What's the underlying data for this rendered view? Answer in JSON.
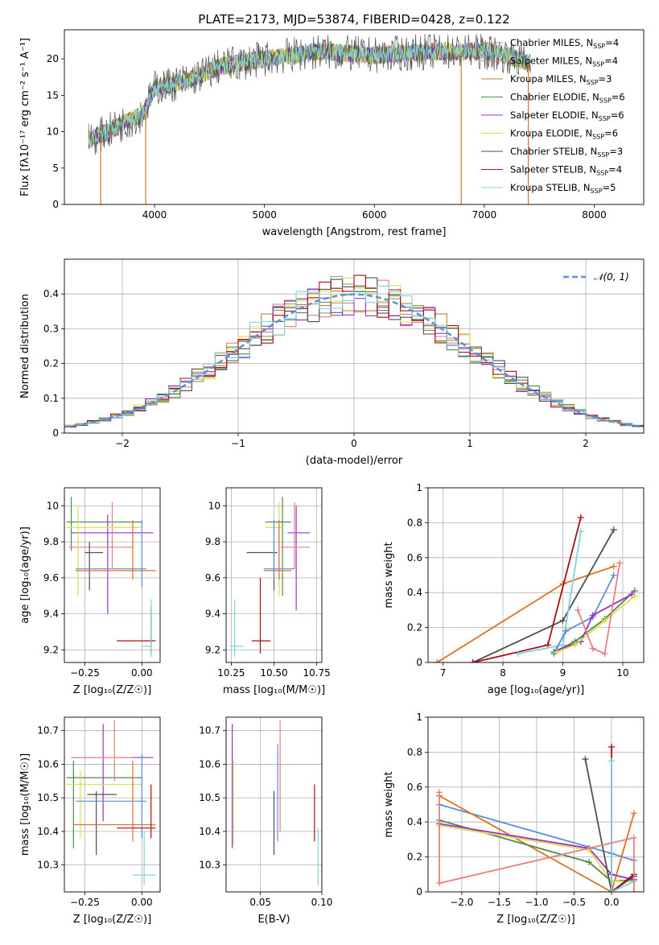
{
  "figure_title": "PLATE=2173, MJD=53874, FIBERID=0428, z=0.122",
  "models": [
    {
      "name": "Chabrier MILES",
      "nssp": "4",
      "color": "#999999"
    },
    {
      "name": "Salpeter MILES",
      "nssp": "4",
      "color": "#e58080"
    },
    {
      "name": "Kroupa MILES",
      "nssp": "3",
      "color": "#b08a2a"
    },
    {
      "name": "Chabrier ELODIE",
      "nssp": "6",
      "color": "#4f8a4f"
    },
    {
      "name": "Salpeter ELODIE",
      "nssp": "6",
      "color": "#9b30c9"
    },
    {
      "name": "Kroupa ELODIE",
      "nssp": "6",
      "color": "#d9e04a"
    },
    {
      "name": "Chabrier STELIB",
      "nssp": "3",
      "color": "#505050"
    },
    {
      "name": "Salpeter STELIB",
      "nssp": "4",
      "color": "#a50f15"
    },
    {
      "name": "Kroupa STELIB",
      "nssp": "5",
      "color": "#7fd4dc"
    }
  ],
  "chart_data": [
    {
      "id": "spectrum",
      "type": "line",
      "xlabel": "wavelength [Angstrom, rest frame]",
      "ylabel": "Flux [fλ10⁻¹⁷ erg cm⁻² s⁻¹ A⁻¹]",
      "xlim": [
        3180,
        8450
      ],
      "ylim": [
        0,
        24
      ],
      "xticks": [
        4000,
        5000,
        6000,
        7000,
        8000
      ],
      "yticks": [
        0,
        5,
        10,
        15,
        20
      ],
      "continuum": {
        "x": [
          3400,
          3500,
          3700,
          3900,
          4000,
          4300,
          4600,
          5000,
          5500,
          6000,
          6500,
          7000,
          7200,
          7400
        ],
        "y": [
          9,
          9.5,
          11,
          12.5,
          16,
          17,
          19,
          20,
          21,
          20.5,
          21,
          21,
          20.5,
          19.5
        ]
      },
      "dips": [
        {
          "x": 3510,
          "y": 0,
          "color": "#e07020"
        },
        {
          "x": 3920,
          "y": 0,
          "color": "#b08a2a"
        },
        {
          "x": 6790,
          "y": 0,
          "color": "#b08a2a"
        },
        {
          "x": 7400,
          "y": 0,
          "color": "#e07020"
        }
      ]
    },
    {
      "id": "residuals",
      "type": "histogram",
      "xlabel": "(data-model)/error",
      "ylabel": "Normed distribution",
      "xlim": [
        -2.5,
        2.5
      ],
      "ylim": [
        0,
        0.5
      ],
      "xticks": [
        -2,
        -1,
        0,
        1,
        2
      ],
      "yticks": [
        0.0,
        0.1,
        0.2,
        0.3,
        0.4
      ],
      "legend": "𝒩(0, 1)",
      "gaussian": {
        "mu": 0,
        "sigma": 1,
        "color": "#5b8fd9"
      },
      "bin_width": 0.1
    },
    {
      "id": "age_vs_Z",
      "type": "scatter",
      "xlabel": "Z [log₁₀(Z/Z☉)]",
      "ylabel": "age  [log₁₀(age/yr)]",
      "xlim": [
        -0.34,
        0.08
      ],
      "ylim": [
        9.13,
        10.1
      ],
      "xticks": [
        -0.25,
        0.0
      ],
      "xticklabels": [
        "−0.25",
        "0.00"
      ],
      "yticks": [
        9.2,
        9.4,
        9.6,
        9.8,
        10.0
      ],
      "points": [
        {
          "x": -0.31,
          "y": 9.91,
          "xlo": -0.33,
          "xhi": 0.0,
          "ylo": 9.75,
          "yhi": 10.05,
          "color": "#4f8a4f"
        },
        {
          "x": -0.15,
          "y": 9.85,
          "xlo": -0.31,
          "xhi": 0.05,
          "ylo": 9.4,
          "yhi": 9.95,
          "color": "#9b30c9"
        },
        {
          "x": -0.13,
          "y": 9.77,
          "xlo": -0.32,
          "xhi": -0.04,
          "ylo": 9.65,
          "yhi": 10.02,
          "color": "#e58080"
        },
        {
          "x": -0.28,
          "y": 9.88,
          "xlo": -0.33,
          "xhi": 0.0,
          "ylo": 9.5,
          "yhi": 10.0,
          "color": "#d9e04a"
        },
        {
          "x": -0.23,
          "y": 9.74,
          "xlo": -0.25,
          "xhi": -0.17,
          "ylo": 9.53,
          "yhi": 9.8,
          "color": "#505050"
        },
        {
          "x": -0.04,
          "y": 9.64,
          "xlo": -0.29,
          "xhi": 0.06,
          "ylo": 9.59,
          "yhi": 9.92,
          "color": "#e07020"
        },
        {
          "x": 0.0,
          "y": 9.65,
          "xlo": -0.29,
          "xhi": 0.02,
          "ylo": 9.55,
          "yhi": 9.92,
          "color": "#5b8fd9"
        },
        {
          "x": 0.04,
          "y": 9.25,
          "xlo": -0.11,
          "xhi": 0.06,
          "ylo": 9.18,
          "yhi": 9.44,
          "color": "#a50f15"
        },
        {
          "x": 0.04,
          "y": 9.22,
          "xlo": -0.0,
          "xhi": 0.04,
          "ylo": 9.16,
          "yhi": 9.48,
          "color": "#7fd4dc"
        }
      ]
    },
    {
      "id": "age_vs_mass",
      "type": "scatter",
      "xlabel": "mass [log₁₀(M/M☉)]",
      "xlim": [
        10.22,
        10.78
      ],
      "ylim": [
        9.13,
        10.1
      ],
      "xticks": [
        10.25,
        10.5,
        10.75
      ],
      "xticklabels": [
        "10.25",
        "10.50",
        "10.75"
      ],
      "yticks": [
        9.2,
        9.4,
        9.6,
        9.8,
        10.0
      ],
      "points": [
        {
          "x": 10.55,
          "y": 9.91,
          "xlo": 10.45,
          "xhi": 10.6,
          "ylo": 9.5,
          "yhi": 10.05,
          "color": "#4f8a4f"
        },
        {
          "x": 10.63,
          "y": 9.85,
          "xlo": 10.58,
          "xhi": 10.71,
          "ylo": 9.42,
          "yhi": 10.0,
          "color": "#9b30c9"
        },
        {
          "x": 10.62,
          "y": 9.77,
          "xlo": 10.54,
          "xhi": 10.71,
          "ylo": 9.65,
          "yhi": 10.02,
          "color": "#e58080"
        },
        {
          "x": 10.53,
          "y": 9.88,
          "xlo": 10.45,
          "xhi": 10.55,
          "ylo": 9.5,
          "yhi": 10.02,
          "color": "#d9e04a"
        },
        {
          "x": 10.5,
          "y": 9.74,
          "xlo": 10.34,
          "xhi": 10.52,
          "ylo": 9.53,
          "yhi": 9.8,
          "color": "#505050"
        },
        {
          "x": 10.53,
          "y": 9.64,
          "xlo": 10.44,
          "xhi": 10.6,
          "ylo": 9.59,
          "yhi": 9.92,
          "color": "#e07020"
        },
        {
          "x": 10.5,
          "y": 9.65,
          "xlo": 10.44,
          "xhi": 10.62,
          "ylo": 9.59,
          "yhi": 9.92,
          "color": "#5b8fd9"
        },
        {
          "x": 10.42,
          "y": 9.25,
          "xlo": 10.37,
          "xhi": 10.48,
          "ylo": 9.18,
          "yhi": 9.6,
          "color": "#a50f15"
        },
        {
          "x": 10.27,
          "y": 9.22,
          "xlo": 10.24,
          "xhi": 10.32,
          "ylo": 9.16,
          "yhi": 9.48,
          "color": "#7fd4dc"
        }
      ]
    },
    {
      "id": "massweight_vs_age",
      "type": "line",
      "xlabel": "age  [log₁₀(age/yr)]",
      "ylabel": "mass weight",
      "xlim": [
        6.75,
        10.35
      ],
      "ylim": [
        0,
        1.0
      ],
      "xticks": [
        7,
        8,
        9,
        10
      ],
      "yticks": [
        0.0,
        0.2,
        0.4,
        0.6,
        0.8,
        1.0
      ],
      "series": [
        {
          "color": "#e07020",
          "x": [
            6.9,
            9.0,
            9.85
          ],
          "y": [
            0.0,
            0.45,
            0.55
          ]
        },
        {
          "color": "#505050",
          "x": [
            7.5,
            9.0,
            9.85
          ],
          "y": [
            0.0,
            0.24,
            0.76
          ]
        },
        {
          "color": "#a50f15",
          "x": [
            7.5,
            8.75,
            9.3
          ],
          "y": [
            0.0,
            0.1,
            0.83
          ]
        },
        {
          "color": "#7fd4dc",
          "x": [
            8.25,
            9.0,
            9.3
          ],
          "y": [
            0.05,
            0.1,
            0.75
          ]
        },
        {
          "color": "#5b8fd9",
          "x": [
            8.85,
            9.05,
            9.5,
            9.85
          ],
          "y": [
            0.05,
            0.18,
            0.26,
            0.5
          ]
        },
        {
          "color": "#4f8a4f",
          "x": [
            8.85,
            9.2,
            9.7,
            10.2
          ],
          "y": [
            0.06,
            0.12,
            0.25,
            0.41
          ]
        },
        {
          "color": "#9b30c9",
          "x": [
            8.9,
            9.3,
            9.5,
            10.15
          ],
          "y": [
            0.07,
            0.12,
            0.27,
            0.39
          ]
        },
        {
          "color": "#d9e04a",
          "x": [
            8.9,
            9.2,
            9.7,
            10.2
          ],
          "y": [
            0.06,
            0.1,
            0.24,
            0.38
          ]
        },
        {
          "color": "#e58080",
          "x": [
            9.25,
            9.5,
            9.7,
            9.95
          ],
          "y": [
            0.3,
            0.08,
            0.05,
            0.57
          ]
        }
      ]
    },
    {
      "id": "mass_vs_Z",
      "type": "scatter",
      "xlabel": "Z [log₁₀(Z/Z☉)]",
      "ylabel": "mass [log₁₀(M/M☉)]",
      "xlim": [
        -0.34,
        0.08
      ],
      "ylim": [
        10.22,
        10.74
      ],
      "xticks": [
        -0.25,
        0.0
      ],
      "xticklabels": [
        "−0.25",
        "0.00"
      ],
      "yticks": [
        10.3,
        10.4,
        10.5,
        10.6,
        10.7
      ],
      "points": [
        {
          "x": -0.3,
          "y": 10.56,
          "xlo": -0.33,
          "xhi": 0.0,
          "ylo": 10.35,
          "yhi": 10.61,
          "color": "#4f8a4f"
        },
        {
          "x": -0.17,
          "y": 10.62,
          "xlo": -0.31,
          "xhi": 0.05,
          "ylo": 10.43,
          "yhi": 10.72,
          "color": "#9b30c9"
        },
        {
          "x": -0.12,
          "y": 10.62,
          "xlo": -0.31,
          "xhi": -0.04,
          "ylo": 10.55,
          "yhi": 10.73,
          "color": "#e58080"
        },
        {
          "x": -0.27,
          "y": 10.54,
          "xlo": -0.33,
          "xhi": -0.0,
          "ylo": 10.38,
          "yhi": 10.58,
          "color": "#d9e04a"
        },
        {
          "x": -0.2,
          "y": 10.51,
          "xlo": -0.24,
          "xhi": -0.11,
          "ylo": 10.33,
          "yhi": 10.52,
          "color": "#505050"
        },
        {
          "x": -0.04,
          "y": 10.42,
          "xlo": -0.3,
          "xhi": 0.06,
          "ylo": 10.37,
          "yhi": 10.61,
          "color": "#e07020"
        },
        {
          "x": 0.0,
          "y": 10.49,
          "xlo": -0.29,
          "xhi": 0.02,
          "ylo": 10.38,
          "yhi": 10.63,
          "color": "#5b8fd9"
        },
        {
          "x": 0.04,
          "y": 10.41,
          "xlo": -0.11,
          "xhi": 0.06,
          "ylo": 10.38,
          "yhi": 10.54,
          "color": "#a50f15"
        },
        {
          "x": 0.01,
          "y": 10.27,
          "xlo": -0.04,
          "xhi": 0.06,
          "ylo": 10.24,
          "yhi": 10.4,
          "color": "#7fd4dc"
        }
      ]
    },
    {
      "id": "mass_vs_ebv",
      "type": "scatter",
      "xlabel": "E(B-V)",
      "xlim": [
        0.022,
        0.1
      ],
      "ylim": [
        10.22,
        10.74
      ],
      "xticks": [
        0.05,
        0.1
      ],
      "xticklabels": [
        "0.05",
        "0.10"
      ],
      "yticks": [
        10.3,
        10.4,
        10.5,
        10.6,
        10.7
      ],
      "points": [
        {
          "x": 0.027,
          "y": 10.56,
          "ylo": 10.35,
          "yhi": 10.72,
          "color": "#9b30c9"
        },
        {
          "x": 0.028,
          "y": 10.47,
          "ylo": 10.36,
          "yhi": 10.61,
          "color": "#d9e04a"
        },
        {
          "x": 0.064,
          "y": 10.52,
          "ylo": 10.37,
          "yhi": 10.66,
          "color": "#5b8fd9"
        },
        {
          "x": 0.066,
          "y": 10.62,
          "ylo": 10.4,
          "yhi": 10.73,
          "color": "#e58080"
        },
        {
          "x": 0.061,
          "y": 10.45,
          "ylo": 10.33,
          "yhi": 10.52,
          "color": "#505050"
        },
        {
          "x": 0.094,
          "y": 10.45,
          "ylo": 10.37,
          "yhi": 10.54,
          "color": "#a50f15"
        },
        {
          "x": 0.097,
          "y": 10.33,
          "ylo": 10.24,
          "yhi": 10.41,
          "color": "#7fd4dc"
        }
      ]
    },
    {
      "id": "massweight_vs_Z",
      "type": "line",
      "xlabel": "Z [log₁₀(Z/Z☉)]",
      "ylabel": "mass weight",
      "xlim": [
        -2.45,
        0.43
      ],
      "ylim": [
        0,
        1.0
      ],
      "xticks": [
        -2.0,
        -1.5,
        -1.0,
        -0.5,
        0.0
      ],
      "xticklabels": [
        "−2.0",
        "−1.5",
        "−1.0",
        "−0.5",
        "0.0"
      ],
      "yticks": [
        0.0,
        0.2,
        0.4,
        0.6,
        0.8,
        1.0
      ],
      "series": [
        {
          "color": "#5b8fd9",
          "x": [
            -2.3,
            0.0,
            0.3
          ],
          "y": [
            0.5,
            0.22,
            0.18
          ]
        },
        {
          "color": "#e07020",
          "x": [
            -2.3,
            0.0,
            0.3
          ],
          "y": [
            0.55,
            0.0,
            0.45
          ]
        },
        {
          "color": "#4f8a4f",
          "x": [
            -2.3,
            -0.3,
            0.0,
            0.3
          ],
          "y": [
            0.41,
            0.17,
            0.06,
            0.07
          ]
        },
        {
          "color": "#9b30c9",
          "x": [
            -2.3,
            -0.3,
            0.0,
            0.3
          ],
          "y": [
            0.39,
            0.25,
            0.1,
            0.07
          ]
        },
        {
          "color": "#d9e04a",
          "x": [
            -2.3,
            -0.3,
            0.0,
            0.3
          ],
          "y": [
            0.38,
            0.24,
            0.06,
            0.06
          ]
        },
        {
          "color": "#505050",
          "x": [
            -0.35,
            0.0,
            0.3
          ],
          "y": [
            0.76,
            0.0,
            0.09
          ]
        },
        {
          "color": "#a50f15",
          "x": [
            0.0,
            0.0,
            0.3
          ],
          "y": [
            0.83,
            0.0,
            0.1
          ]
        },
        {
          "color": "#7fd4dc",
          "x": [
            0.0,
            0.0,
            0.3
          ],
          "y": [
            0.75,
            0.0,
            0.06
          ]
        },
        {
          "color": "#e58080",
          "x": [
            -2.3,
            -2.3,
            0.3,
            0.3
          ],
          "y": [
            0.57,
            0.05,
            0.31,
            0.0
          ]
        }
      ]
    }
  ]
}
